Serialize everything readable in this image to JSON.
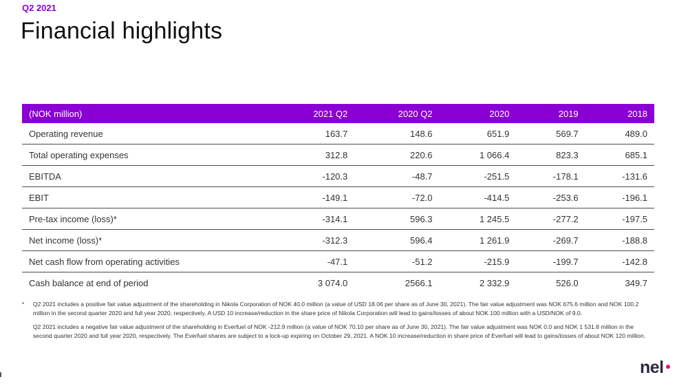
{
  "header": {
    "period": "Q2 2021",
    "title": "Financial highlights"
  },
  "table": {
    "columns": [
      "(NOK million)",
      "2021 Q2",
      "2020 Q2",
      "2020",
      "2019",
      "2018"
    ],
    "rows": [
      [
        "Operating revenue",
        "163.7",
        "148.6",
        "651.9",
        "569.7",
        "489.0"
      ],
      [
        "Total operating expenses",
        "312.8",
        "220.6",
        "1 066.4",
        "823.3",
        "685.1"
      ],
      [
        "EBITDA",
        "-120.3",
        "-48.7",
        "-251.5",
        "-178.1",
        "-131.6"
      ],
      [
        "EBIT",
        "-149.1",
        "-72.0",
        "-414.5",
        "-253.6",
        "-196.1"
      ],
      [
        "Pre-tax income (loss)*",
        "-314.1",
        "596.3",
        "1 245.5",
        "-277.2",
        "-197.5"
      ],
      [
        "Net income (loss)*",
        "-312.3",
        "596.4",
        "1 261.9",
        "-269.7",
        "-188.8"
      ],
      [
        "Net cash flow from operating activities",
        "-47.1",
        "-51.2",
        "-215.9",
        "-199.7",
        "-142.8"
      ],
      [
        "Cash balance at end of period",
        "3 074.0",
        "2566.1",
        "2 332.9",
        "526.0",
        "349.7"
      ]
    ]
  },
  "footnotes": {
    "marker": "*",
    "items": [
      "Q2 2021 includes a positive fair value adjustment of the shareholding in Nikola Corporation of NOK 40.0 million (a value of USD 18.06 per share as of June 30, 2021). The fair value adjustment was NOK 675.6 million and NOK 100.2 million in the second quarter 2020 and full year 2020, respectively. A USD 10 increase/reduction in the share price of Nikola Corporation will lead to gains/losses of about NOK 100 million with a USD/NOK of 9.0.",
      "Q2 2021 includes a negative fair value adjustment of the shareholding in Everfuel of NOK -212.9 million (a value of NOK 70.10 per share as of June 30, 2021). The fair value adjustment was NOK 0.0 and NOK 1 531.8 million in the second quarter 2020 and full year 2020, respectively. The Everfuel shares are subject to a lock-up expiring on October 29, 2021. A NOK 10 increase/reduction in share price of Everfuel will lead to gains/losses of about NOK 120 million."
    ]
  },
  "logo": {
    "text": "nel"
  },
  "colors": {
    "accent": "#8a00d4",
    "logo_dot": "#e2137a"
  }
}
